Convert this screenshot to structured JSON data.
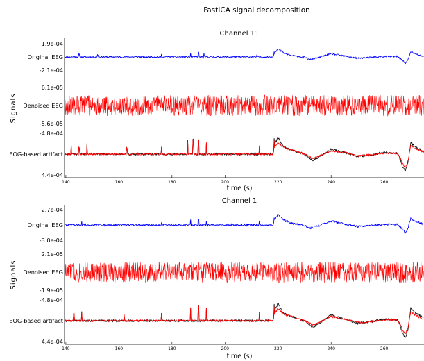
{
  "figure_title": "FastICA signal decomposition",
  "y_axis_label": "Signals",
  "colors": {
    "original": "#0000ff",
    "denoised": "#ff0000",
    "artifact_red": "#ff0000",
    "artifact_black": "#000000"
  },
  "chart_data": [
    {
      "type": "line",
      "title": "Channel 11",
      "xlabel": "time (s)",
      "ylabel": "Signals",
      "x_range": [
        139.5,
        275
      ],
      "x_ticks": [
        140,
        160,
        180,
        200,
        220,
        240,
        260
      ],
      "series": [
        {
          "name": "Original EEG",
          "color": "#0000ff",
          "y_top_label": "1.9e-04",
          "y_bottom_label": "-2.1e-04",
          "x": [
            140,
            150,
            160,
            170,
            180,
            190,
            200,
            210,
            218,
            219,
            220,
            222,
            225,
            230,
            232,
            235,
            240,
            245,
            250,
            255,
            260,
            265,
            267,
            268,
            269,
            270,
            272,
            275
          ],
          "y": [
            0,
            0,
            0,
            0,
            0,
            0,
            0,
            0,
            0,
            0.6,
            0.9,
            0.45,
            0.15,
            -0.05,
            -0.3,
            -0.1,
            0.35,
            0.1,
            -0.15,
            -0.05,
            0.05,
            0.05,
            -0.4,
            -0.75,
            -0.3,
            0.6,
            0.3,
            0.05
          ],
          "noise": 0.08,
          "spikes": [
            {
              "x": 145,
              "h": 0.3
            },
            {
              "x": 152,
              "h": 0.25
            },
            {
              "x": 176,
              "h": 0.3
            },
            {
              "x": 187,
              "h": 0.4
            },
            {
              "x": 190,
              "h": 0.45
            },
            {
              "x": 192,
              "h": 0.35
            },
            {
              "x": 212,
              "h": 0.3
            },
            {
              "x": 218.5,
              "h": 0.35
            }
          ]
        },
        {
          "name": "Denoised EEG",
          "color": "#ff0000",
          "y_top_label": "6.1e-05",
          "y_bottom_label": "-5.6e-05",
          "x": [
            140,
            275
          ],
          "y": [
            0,
            0
          ],
          "noise": 0.75,
          "spikes": []
        },
        {
          "name": "EOG-based artifact",
          "color": "#ff0000",
          "y_top_label": "-4.8e-04",
          "y_bottom_label": "4.4e-04",
          "x": [
            140,
            150,
            160,
            170,
            180,
            190,
            200,
            210,
            218,
            219,
            220,
            222,
            225,
            230,
            233,
            235,
            240,
            245,
            250,
            255,
            260,
            265,
            266,
            267,
            268,
            269,
            270,
            272,
            275
          ],
          "y": [
            0,
            0,
            0,
            0,
            0,
            0,
            0,
            0,
            0,
            0.5,
            0.7,
            0.4,
            0.25,
            0,
            -0.25,
            -0.15,
            0.2,
            0.1,
            -0.1,
            -0.05,
            0.05,
            0.05,
            -0.2,
            -0.6,
            -0.8,
            -0.4,
            0.5,
            0.3,
            0.1
          ],
          "noise": 0.05,
          "spikes": [
            {
              "x": 142,
              "h": 0.5
            },
            {
              "x": 145,
              "h": 0.4
            },
            {
              "x": 148,
              "h": 0.6
            },
            {
              "x": 163,
              "h": 0.4
            },
            {
              "x": 176,
              "h": 0.45
            },
            {
              "x": 186,
              "h": 0.8
            },
            {
              "x": 188,
              "h": 0.9
            },
            {
              "x": 190,
              "h": 0.85
            },
            {
              "x": 193,
              "h": 0.7
            },
            {
              "x": 213,
              "h": 0.5
            },
            {
              "x": 218.5,
              "h": 0.6
            }
          ],
          "overlay": {
            "name": "EOG-based artifact (reference)",
            "color": "#000000",
            "x": [
              140,
              150,
              160,
              170,
              180,
              190,
              200,
              210,
              218,
              219,
              220,
              222,
              225,
              230,
              233,
              235,
              240,
              245,
              250,
              255,
              260,
              265,
              266,
              267,
              268,
              269,
              270,
              272,
              275
            ],
            "y": [
              0,
              0,
              0,
              0,
              0,
              0,
              0,
              0,
              0,
              0.7,
              1.0,
              0.45,
              0.25,
              0,
              -0.4,
              -0.2,
              0.3,
              0.1,
              -0.15,
              -0.05,
              0.1,
              0.05,
              -0.3,
              -0.8,
              -1.0,
              -0.5,
              0.7,
              0.4,
              0.15
            ]
          }
        }
      ]
    },
    {
      "type": "line",
      "title": "Channel 1",
      "xlabel": "time (s)",
      "ylabel": "Signals",
      "x_range": [
        139.5,
        275
      ],
      "x_ticks": [
        140,
        160,
        180,
        200,
        220,
        240,
        260
      ],
      "series": [
        {
          "name": "Original EEG",
          "color": "#0000ff",
          "y_top_label": "2.7e-04",
          "y_bottom_label": "-3.0e-04",
          "x": [
            140,
            150,
            160,
            170,
            180,
            190,
            200,
            210,
            218,
            219,
            220,
            222,
            225,
            230,
            232,
            235,
            240,
            245,
            250,
            255,
            260,
            265,
            267,
            268,
            269,
            270,
            272,
            275
          ],
          "y": [
            0,
            0,
            0,
            0,
            0,
            0,
            0,
            0,
            0,
            0.6,
            0.95,
            0.45,
            0.15,
            -0.05,
            -0.3,
            -0.1,
            0.35,
            0.1,
            -0.15,
            -0.05,
            0.05,
            0.05,
            -0.4,
            -0.75,
            -0.3,
            0.6,
            0.3,
            0.05
          ],
          "noise": 0.08,
          "spikes": [
            {
              "x": 146,
              "h": 0.3
            },
            {
              "x": 176,
              "h": 0.3
            },
            {
              "x": 187,
              "h": 0.45
            },
            {
              "x": 190,
              "h": 0.5
            },
            {
              "x": 193,
              "h": 0.4
            },
            {
              "x": 213,
              "h": 0.3
            },
            {
              "x": 218.5,
              "h": 0.35
            }
          ]
        },
        {
          "name": "Denoised EEG",
          "color": "#ff0000",
          "y_top_label": "2.1e-05",
          "y_bottom_label": "-1.9e-05",
          "x": [
            140,
            275
          ],
          "y": [
            0,
            0
          ],
          "noise": 0.75,
          "spikes": []
        },
        {
          "name": "EOG-based artifact",
          "color": "#ff0000",
          "y_top_label": "-4.8e-04",
          "y_bottom_label": "4.4e-04",
          "x": [
            140,
            150,
            160,
            170,
            180,
            190,
            200,
            210,
            218,
            219,
            220,
            222,
            225,
            230,
            233,
            235,
            240,
            245,
            250,
            255,
            260,
            265,
            266,
            267,
            268,
            269,
            270,
            272,
            275
          ],
          "y": [
            0,
            0,
            0,
            0,
            0,
            0,
            0,
            0,
            0,
            0.5,
            0.75,
            0.4,
            0.25,
            0,
            -0.25,
            -0.15,
            0.25,
            0.1,
            -0.1,
            -0.05,
            0.05,
            0.05,
            -0.2,
            -0.6,
            -0.8,
            -0.4,
            0.55,
            0.3,
            0.1
          ],
          "noise": 0.05,
          "spikes": [
            {
              "x": 143,
              "h": 0.4
            },
            {
              "x": 146,
              "h": 0.5
            },
            {
              "x": 162,
              "h": 0.35
            },
            {
              "x": 176,
              "h": 0.45
            },
            {
              "x": 187,
              "h": 0.8
            },
            {
              "x": 190,
              "h": 0.9
            },
            {
              "x": 193,
              "h": 0.75
            },
            {
              "x": 213,
              "h": 0.5
            },
            {
              "x": 218.5,
              "h": 0.6
            }
          ],
          "overlay": {
            "name": "EOG-based artifact (reference)",
            "color": "#000000",
            "x": [
              140,
              150,
              160,
              170,
              180,
              190,
              200,
              210,
              218,
              219,
              220,
              222,
              225,
              230,
              233,
              235,
              240,
              245,
              250,
              255,
              260,
              265,
              266,
              267,
              268,
              269,
              270,
              272,
              275
            ],
            "y": [
              0,
              0,
              0,
              0,
              0,
              0,
              0,
              0,
              0,
              0.75,
              1.05,
              0.45,
              0.25,
              0,
              -0.4,
              -0.2,
              0.35,
              0.1,
              -0.15,
              -0.05,
              0.1,
              0.05,
              -0.3,
              -0.8,
              -1.0,
              -0.5,
              0.75,
              0.45,
              0.15
            ]
          }
        }
      ]
    }
  ]
}
